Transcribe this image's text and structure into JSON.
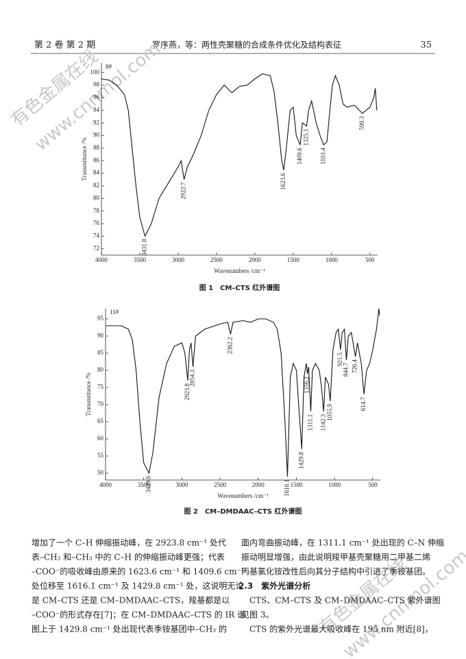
{
  "header": {
    "left": "第 2 卷 第 2 期",
    "center": "罗序燕，等：两性壳聚糖的合成条件优化及结构表征",
    "page": "35"
  },
  "watermark": [
    "有色金属在线",
    "www.cnnmol.com"
  ],
  "chart_data": [
    {
      "type": "line",
      "sample": "8#",
      "caption": "图 1　CM–CTS 红外谱图",
      "xlabel": "Wavenumbers /cm⁻¹",
      "ylabel": "Transmittance /%",
      "color": "#111111",
      "xlim": [
        4000,
        400
      ],
      "xticks": [
        4000,
        3500,
        3000,
        2500,
        2000,
        1500,
        1000,
        500
      ],
      "ylim": [
        71,
        101.5
      ],
      "yticks": [
        72,
        74,
        76,
        78,
        80,
        82,
        84,
        86,
        88,
        90,
        92,
        94,
        96,
        98,
        100
      ],
      "x": [
        4000,
        3900,
        3800,
        3700,
        3650,
        3600,
        3550,
        3500,
        3431.8,
        3350,
        3250,
        3100,
        3000,
        2960,
        2922.7,
        2880,
        2800,
        2700,
        2600,
        2500,
        2400,
        2300,
        2200,
        2100,
        2000,
        1900,
        1800,
        1750,
        1700,
        1650,
        1623.6,
        1590,
        1540,
        1500,
        1460,
        1409.6,
        1380,
        1325.1,
        1300,
        1260,
        1200,
        1150,
        1103.4,
        1060,
        1030,
        990,
        950,
        900,
        850,
        800,
        700,
        599.3,
        550,
        500,
        450,
        430,
        410
      ],
      "values": [
        99,
        98.8,
        98,
        96.5,
        94,
        88,
        82,
        77,
        74,
        76,
        80,
        83,
        85,
        86,
        83,
        85,
        87,
        90,
        94,
        96.5,
        98,
        96.8,
        97.8,
        98,
        99,
        99.8,
        99.5,
        97,
        92,
        86,
        84.5,
        88,
        94,
        94.5,
        90,
        88.5,
        92,
        91.5,
        94,
        95.5,
        92,
        90,
        88.5,
        89,
        93,
        98,
        99.5,
        98,
        95,
        94.5,
        94.8,
        93.5,
        94,
        94.5,
        96,
        97.5,
        94
      ],
      "peaks": [
        {
          "x": 3431.8,
          "y": 74
        },
        {
          "x": 2922.7,
          "y": 83
        },
        {
          "x": 1623.6,
          "y": 84.5
        },
        {
          "x": 1409.6,
          "y": 88.5
        },
        {
          "x": 1325.1,
          "y": 91.5
        },
        {
          "x": 1103.4,
          "y": 88.5
        },
        {
          "x": 599.3,
          "y": 93.5
        }
      ]
    },
    {
      "type": "line",
      "sample": "11#",
      "caption": "图 2　CM–DMDAAC–CTS 红外谱图",
      "xlabel": "Wavenumbers /cm⁻¹",
      "ylabel": "Transmittance /%",
      "color": "#111111",
      "xlim": [
        4000,
        400
      ],
      "xticks": [
        4000,
        3500,
        3000,
        2500,
        2000,
        1500,
        1000,
        500
      ],
      "ylim": [
        48,
        98
      ],
      "yticks": [
        50,
        55,
        60,
        65,
        70,
        75,
        80,
        85,
        90,
        95
      ],
      "x": [
        4000,
        3800,
        3700,
        3650,
        3600,
        3550,
        3500,
        3429.6,
        3380,
        3300,
        3200,
        3100,
        3000,
        2960,
        2923.8,
        2900,
        2880,
        2854.3,
        2820,
        2700,
        2500,
        2400,
        2362.2,
        2330,
        2200,
        2100,
        2000,
        1900,
        1800,
        1750,
        1700,
        1650,
        1616.1,
        1580,
        1540,
        1500,
        1470,
        1429.8,
        1400,
        1370,
        1356.2,
        1340,
        1311.1,
        1290,
        1250,
        1200,
        1170,
        1142.3,
        1120,
        1080,
        1055.9,
        1020,
        980,
        950,
        921.5,
        900,
        870,
        844.7,
        820,
        780,
        726.4,
        700,
        650,
        614.7,
        580,
        540,
        500,
        450,
        420,
        410
      ],
      "values": [
        93,
        93,
        92,
        89,
        80,
        65,
        53,
        50,
        56,
        72,
        82,
        87,
        88,
        85,
        77,
        86,
        88,
        81,
        90,
        92,
        93.5,
        94,
        90.5,
        94,
        94.5,
        94,
        95,
        95,
        94,
        92,
        85,
        65,
        49,
        78,
        82,
        80,
        70,
        57,
        78,
        82,
        79,
        81,
        68,
        80,
        82,
        80,
        75,
        68,
        78,
        76,
        71,
        86,
        91,
        92,
        86,
        91,
        92,
        83,
        90,
        91,
        84,
        88,
        82,
        73,
        80,
        82,
        86,
        92,
        98,
        96
      ],
      "peaks": [
        {
          "x": 3429.6,
          "y": 50
        },
        {
          "x": 2923.8,
          "y": 77
        },
        {
          "x": 2854.3,
          "y": 81
        },
        {
          "x": 2362.2,
          "y": 90.5
        },
        {
          "x": 1616.1,
          "y": 49
        },
        {
          "x": 1429.8,
          "y": 57
        },
        {
          "x": 1356.2,
          "y": 79
        },
        {
          "x": 1311.1,
          "y": 68
        },
        {
          "x": 1142.3,
          "y": 68
        },
        {
          "x": 1055.9,
          "y": 71
        },
        {
          "x": 921.5,
          "y": 86
        },
        {
          "x": 844.7,
          "y": 83
        },
        {
          "x": 726.4,
          "y": 84
        },
        {
          "x": 614.7,
          "y": 73
        }
      ]
    }
  ],
  "body": {
    "left": [
      "增加了一个 C–H 伸缩振动峰，在 2923.8 cm⁻¹ 处代",
      "表–CH₂ 和–CH₃ 中的 C–H 的伸缩振动峰更强；代表",
      "–COO⁻的吸收峰由原来的 1623.6 cm⁻¹ 和 1409.6 cm⁻¹",
      "处位移至 1616.1 cm⁻¹ 及 1429.8 cm⁻¹ 处，这说明无论",
      "是 CM–CTS 还是 CM–DMDAAC–CTS，羧基都是以",
      "–COO⁻的形式存在[7]；在 CM–DMDAAC–CTS 的 IR 谱",
      "图上于 1429.8 cm⁻¹ 处出现代表季铵基团中–CH₃ 的"
    ],
    "right": [
      "面内弯曲振动峰，在 1311.1 cm⁻¹ 处出现的 C–N 伸缩",
      "振动明显增强，由此说明羧甲基壳聚糖用二甲基二烯",
      "丙基氯化铵改性后向其分子结构中引进了季铵基团。"
    ],
    "section": "2.3　紫外光谱分析",
    "right2": [
      "　CTS、CM–CTS 及 CM–DMDAAC–CTS 紫外谱图",
      "见图 3。",
      "　CTS 的紫外光谱最大吸收峰在 195 nm 附近[8]，"
    ]
  }
}
